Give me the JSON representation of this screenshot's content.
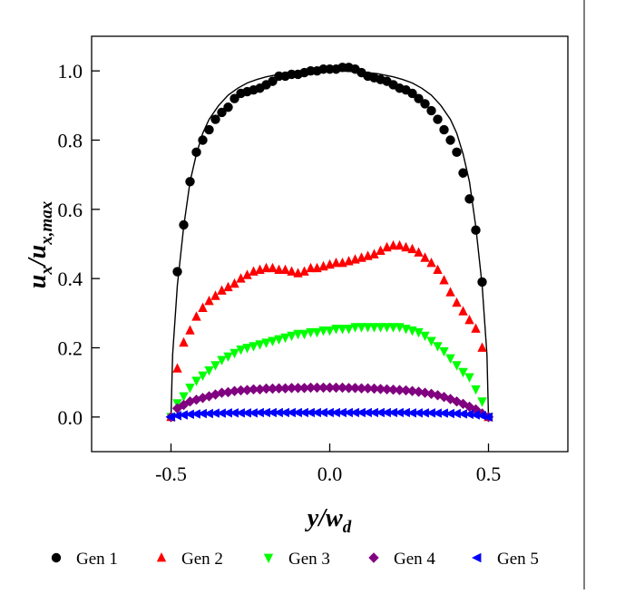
{
  "chart_data": {
    "type": "scatter",
    "title": "",
    "xlabel": {
      "main": "y/w",
      "sub": "d"
    },
    "ylabel": {
      "main1": "u",
      "sub1": "x",
      "mid": "/u",
      "sub2": "x,max"
    },
    "xlim": [
      -0.75,
      0.75
    ],
    "ylim": [
      -0.1,
      1.1
    ],
    "xticks": [
      -0.5,
      0.0,
      0.5
    ],
    "xtick_labels": [
      "-0.5",
      "0.0",
      "0.5"
    ],
    "yticks": [
      0.0,
      0.2,
      0.4,
      0.6,
      0.8,
      1.0
    ],
    "ytick_labels": [
      "0.0",
      "0.2",
      "0.4",
      "0.6",
      "0.8",
      "1.0"
    ],
    "grid": false,
    "legend_position": "bottom",
    "fit_curve": {
      "description": "solid black analytical profile",
      "x": [
        -0.5,
        -0.495,
        -0.48,
        -0.46,
        -0.44,
        -0.42,
        -0.4,
        -0.38,
        -0.35,
        -0.32,
        -0.29,
        -0.26,
        -0.23,
        -0.2,
        -0.15,
        -0.1,
        -0.05,
        0.0,
        0.05,
        0.1,
        0.15,
        0.2,
        0.23,
        0.26,
        0.29,
        0.32,
        0.35,
        0.38,
        0.4,
        0.42,
        0.44,
        0.46,
        0.48,
        0.495,
        0.5
      ],
      "y": [
        0.0,
        0.18,
        0.38,
        0.55,
        0.68,
        0.76,
        0.82,
        0.86,
        0.9,
        0.93,
        0.95,
        0.965,
        0.975,
        0.983,
        0.992,
        0.997,
        0.999,
        1.0,
        0.999,
        0.997,
        0.992,
        0.983,
        0.975,
        0.965,
        0.95,
        0.93,
        0.9,
        0.86,
        0.82,
        0.76,
        0.68,
        0.55,
        0.38,
        0.18,
        0.0
      ]
    },
    "series": [
      {
        "name": "Gen 1",
        "color": "#000000",
        "marker": "circle",
        "x": [
          -0.48,
          -0.46,
          -0.44,
          -0.42,
          -0.4,
          -0.38,
          -0.36,
          -0.34,
          -0.32,
          -0.3,
          -0.28,
          -0.26,
          -0.24,
          -0.22,
          -0.2,
          -0.18,
          -0.16,
          -0.14,
          -0.12,
          -0.1,
          -0.08,
          -0.06,
          -0.04,
          -0.02,
          0.0,
          0.02,
          0.04,
          0.06,
          0.08,
          0.1,
          0.12,
          0.14,
          0.16,
          0.18,
          0.2,
          0.22,
          0.24,
          0.26,
          0.28,
          0.3,
          0.32,
          0.34,
          0.36,
          0.38,
          0.4,
          0.42,
          0.44,
          0.46,
          0.48
        ],
        "y": [
          0.42,
          0.555,
          0.68,
          0.765,
          0.8,
          0.83,
          0.86,
          0.88,
          0.895,
          0.92,
          0.935,
          0.94,
          0.945,
          0.95,
          0.96,
          0.97,
          0.985,
          0.985,
          0.99,
          0.99,
          0.995,
          1.0,
          1.0,
          1.005,
          1.005,
          1.005,
          1.01,
          1.01,
          1.005,
          0.995,
          0.985,
          0.98,
          0.975,
          0.97,
          0.96,
          0.95,
          0.945,
          0.935,
          0.92,
          0.905,
          0.885,
          0.86,
          0.83,
          0.8,
          0.765,
          0.705,
          0.63,
          0.54,
          0.39
        ]
      },
      {
        "name": "Gen 2",
        "color": "#ff0000",
        "marker": "triangle-up",
        "x": [
          -0.5,
          -0.48,
          -0.46,
          -0.44,
          -0.42,
          -0.4,
          -0.38,
          -0.36,
          -0.34,
          -0.32,
          -0.3,
          -0.28,
          -0.26,
          -0.24,
          -0.22,
          -0.2,
          -0.18,
          -0.16,
          -0.14,
          -0.12,
          -0.1,
          -0.08,
          -0.06,
          -0.04,
          -0.02,
          0.0,
          0.02,
          0.04,
          0.06,
          0.08,
          0.1,
          0.12,
          0.14,
          0.16,
          0.18,
          0.2,
          0.22,
          0.24,
          0.26,
          0.28,
          0.3,
          0.32,
          0.34,
          0.36,
          0.38,
          0.4,
          0.42,
          0.44,
          0.46,
          0.48,
          0.5
        ],
        "y": [
          0.0,
          0.14,
          0.215,
          0.25,
          0.29,
          0.315,
          0.335,
          0.35,
          0.365,
          0.375,
          0.385,
          0.4,
          0.41,
          0.42,
          0.425,
          0.43,
          0.43,
          0.425,
          0.425,
          0.42,
          0.415,
          0.42,
          0.43,
          0.43,
          0.435,
          0.44,
          0.445,
          0.445,
          0.45,
          0.455,
          0.46,
          0.465,
          0.47,
          0.48,
          0.49,
          0.495,
          0.495,
          0.49,
          0.485,
          0.475,
          0.46,
          0.445,
          0.425,
          0.395,
          0.36,
          0.33,
          0.305,
          0.28,
          0.255,
          0.2,
          0.0
        ]
      },
      {
        "name": "Gen 3",
        "color": "#00ff00",
        "marker": "triangle-down",
        "x": [
          -0.5,
          -0.48,
          -0.46,
          -0.44,
          -0.42,
          -0.4,
          -0.38,
          -0.36,
          -0.34,
          -0.32,
          -0.3,
          -0.28,
          -0.26,
          -0.24,
          -0.22,
          -0.2,
          -0.18,
          -0.16,
          -0.14,
          -0.12,
          -0.1,
          -0.08,
          -0.06,
          -0.04,
          -0.02,
          0.0,
          0.02,
          0.04,
          0.06,
          0.08,
          0.1,
          0.12,
          0.14,
          0.16,
          0.18,
          0.2,
          0.22,
          0.24,
          0.26,
          0.28,
          0.3,
          0.32,
          0.34,
          0.36,
          0.38,
          0.4,
          0.42,
          0.44,
          0.46,
          0.48,
          0.5
        ],
        "y": [
          0.0,
          0.04,
          0.06,
          0.085,
          0.105,
          0.12,
          0.135,
          0.15,
          0.165,
          0.175,
          0.185,
          0.195,
          0.2,
          0.205,
          0.21,
          0.215,
          0.22,
          0.225,
          0.23,
          0.235,
          0.24,
          0.24,
          0.245,
          0.245,
          0.25,
          0.25,
          0.255,
          0.255,
          0.255,
          0.26,
          0.26,
          0.26,
          0.26,
          0.26,
          0.26,
          0.26,
          0.26,
          0.255,
          0.25,
          0.245,
          0.235,
          0.22,
          0.205,
          0.19,
          0.17,
          0.15,
          0.13,
          0.115,
          0.08,
          0.045,
          0.0
        ]
      },
      {
        "name": "Gen 4",
        "color": "#800080",
        "marker": "diamond",
        "x": [
          -0.5,
          -0.48,
          -0.46,
          -0.44,
          -0.42,
          -0.4,
          -0.38,
          -0.36,
          -0.34,
          -0.32,
          -0.3,
          -0.28,
          -0.26,
          -0.24,
          -0.22,
          -0.2,
          -0.18,
          -0.16,
          -0.14,
          -0.12,
          -0.1,
          -0.08,
          -0.06,
          -0.04,
          -0.02,
          0.0,
          0.02,
          0.04,
          0.06,
          0.08,
          0.1,
          0.12,
          0.14,
          0.16,
          0.18,
          0.2,
          0.22,
          0.24,
          0.26,
          0.28,
          0.3,
          0.32,
          0.34,
          0.36,
          0.38,
          0.4,
          0.42,
          0.44,
          0.46,
          0.48,
          0.5
        ],
        "y": [
          0.0,
          0.025,
          0.035,
          0.045,
          0.05,
          0.055,
          0.06,
          0.065,
          0.07,
          0.072,
          0.075,
          0.077,
          0.078,
          0.08,
          0.08,
          0.082,
          0.082,
          0.083,
          0.083,
          0.084,
          0.084,
          0.084,
          0.085,
          0.085,
          0.085,
          0.085,
          0.085,
          0.085,
          0.084,
          0.084,
          0.083,
          0.083,
          0.082,
          0.081,
          0.08,
          0.079,
          0.078,
          0.077,
          0.075,
          0.073,
          0.07,
          0.067,
          0.063,
          0.058,
          0.052,
          0.045,
          0.038,
          0.03,
          0.022,
          0.01,
          0.0
        ]
      },
      {
        "name": "Gen 5",
        "color": "#0000ff",
        "marker": "triangle-left",
        "x": [
          -0.5,
          -0.48,
          -0.46,
          -0.44,
          -0.42,
          -0.4,
          -0.38,
          -0.36,
          -0.34,
          -0.32,
          -0.3,
          -0.28,
          -0.26,
          -0.24,
          -0.22,
          -0.2,
          -0.18,
          -0.16,
          -0.14,
          -0.12,
          -0.1,
          -0.08,
          -0.06,
          -0.04,
          -0.02,
          0.0,
          0.02,
          0.04,
          0.06,
          0.08,
          0.1,
          0.12,
          0.14,
          0.16,
          0.18,
          0.2,
          0.22,
          0.24,
          0.26,
          0.28,
          0.3,
          0.32,
          0.34,
          0.36,
          0.38,
          0.4,
          0.42,
          0.44,
          0.46,
          0.48,
          0.5
        ],
        "y": [
          0.0,
          0.004,
          0.006,
          0.008,
          0.009,
          0.01,
          0.01,
          0.011,
          0.011,
          0.012,
          0.012,
          0.012,
          0.012,
          0.012,
          0.013,
          0.013,
          0.013,
          0.013,
          0.013,
          0.013,
          0.013,
          0.013,
          0.013,
          0.013,
          0.013,
          0.013,
          0.013,
          0.013,
          0.013,
          0.013,
          0.013,
          0.013,
          0.013,
          0.013,
          0.013,
          0.013,
          0.013,
          0.013,
          0.012,
          0.012,
          0.012,
          0.012,
          0.011,
          0.011,
          0.01,
          0.01,
          0.009,
          0.008,
          0.006,
          0.004,
          0.0
        ]
      }
    ]
  }
}
